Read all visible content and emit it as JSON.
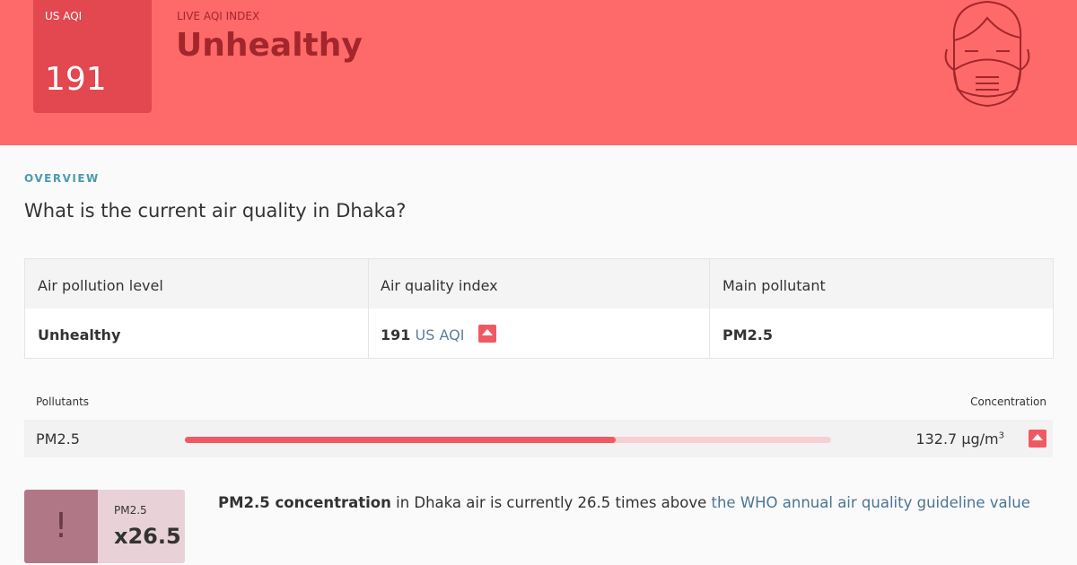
{
  "header": {
    "aqi_label": "US AQI",
    "aqi_value": "191",
    "index_label": "LIVE AQI INDEX",
    "status": "Unhealthy"
  },
  "overview": {
    "label": "OVERVIEW",
    "question": "What is the current air quality in Dhaka?"
  },
  "table": {
    "headers": [
      "Air pollution level",
      "Air quality index",
      "Main pollutant"
    ],
    "row": {
      "level": "Unhealthy",
      "aqi": "191",
      "aqi_unit": "US AQI",
      "pollutant": "PM2.5"
    }
  },
  "pollutants": {
    "header_left": "Pollutants",
    "header_right": "Concentration",
    "name": "PM2.5",
    "concentration": "132.7 µg/m",
    "unit_sup": "3"
  },
  "callout": {
    "icon": "!",
    "pollutant": "PM2.5",
    "multiplier": "x26.5",
    "bold": "PM2.5 concentration",
    "text": " in Dhaka air is currently 26.5 times above ",
    "link": "the WHO annual air quality guideline value"
  }
}
